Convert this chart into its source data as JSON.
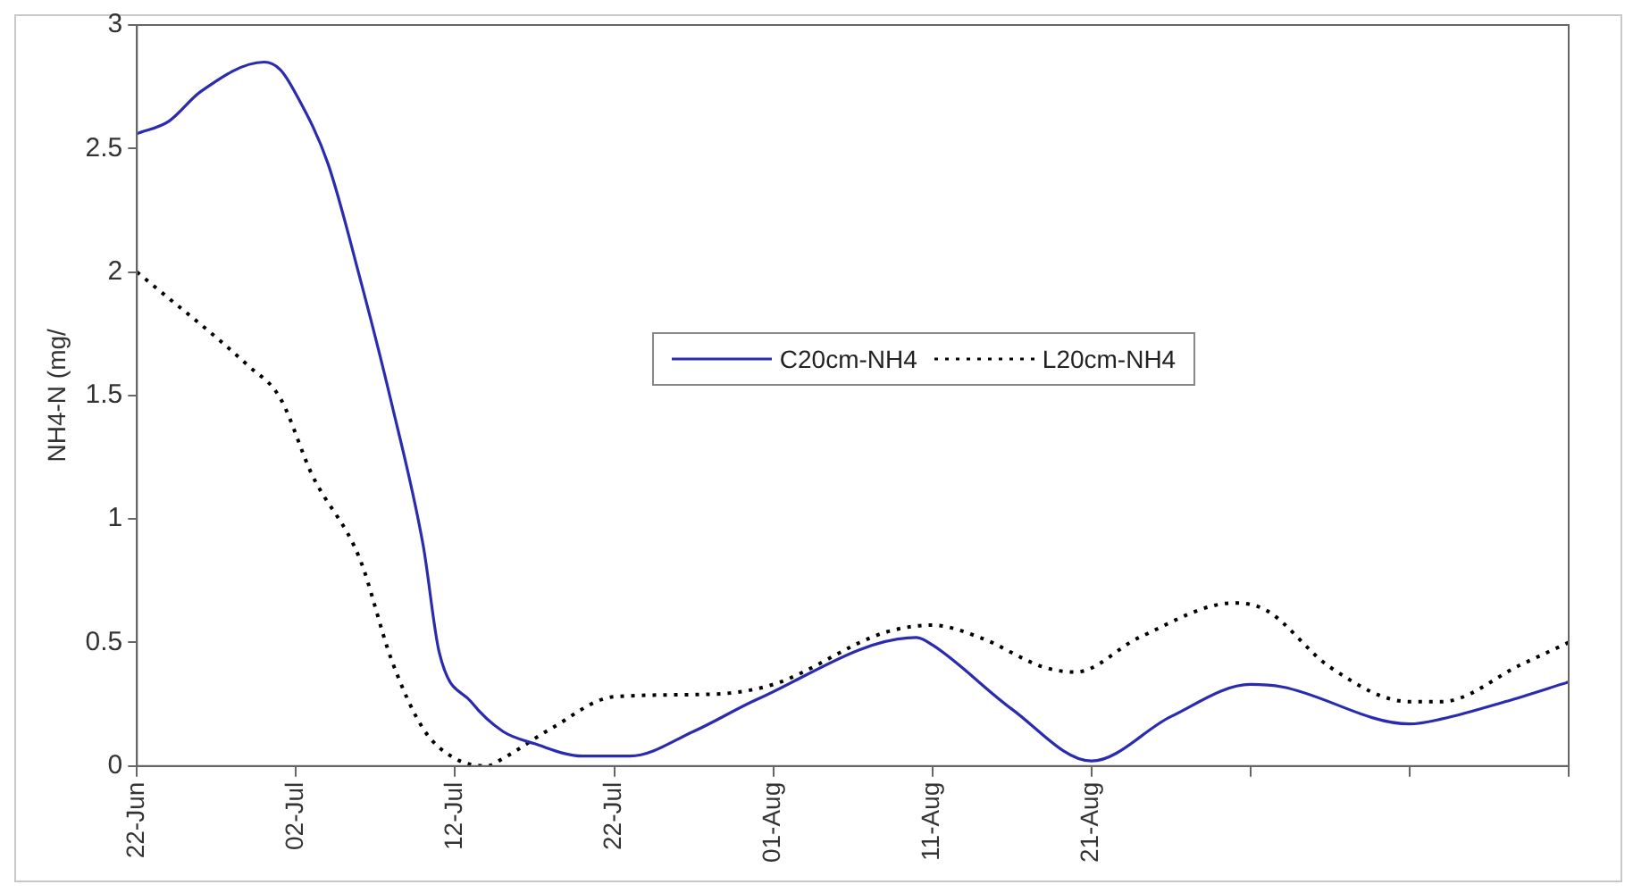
{
  "chart_data": {
    "type": "line",
    "xlabel": null,
    "ylabel": "NH4-N (mg/",
    "legend": "center",
    "grid": false,
    "marker": "none",
    "xlim": [
      "--06-22",
      "--09-20"
    ],
    "xticks": [
      {
        "value": "--06-22",
        "label": "22-Jun"
      },
      {
        "value": "--07-02",
        "label": "02-Jul"
      },
      {
        "value": "--07-12",
        "label": "12-Jul"
      },
      {
        "value": "--07-22",
        "label": "22-Jul"
      },
      {
        "value": "--08-01",
        "label": "01-Aug"
      },
      {
        "value": "--08-11",
        "label": "11-Aug"
      },
      {
        "value": "--08-21",
        "label": "21-Aug"
      },
      {
        "value": "--08-31",
        "label": null
      },
      {
        "value": "--09-10",
        "label": null
      },
      {
        "value": "--09-20",
        "label": null
      }
    ],
    "ylim": [
      0,
      3
    ],
    "yticks": [
      0,
      0.5,
      1,
      1.5,
      2,
      2.5,
      3
    ],
    "series": [
      {
        "name": "C20cm-NH4",
        "color": "#2b2bb0",
        "line_style": "solid",
        "x": [
          "--06-22",
          "--06-24",
          "--06-26",
          "--06-30",
          "--07-01",
          "--07-02",
          "--07-04",
          "--07-06",
          "--07-08",
          "--07-10",
          "--07-11",
          "--07-13",
          "--07-15",
          "--07-17",
          "--07-20",
          "--07-23",
          "--07-27",
          "--07-31",
          "--08-10",
          "--08-11",
          "--08-16",
          "--08-21",
          "--08-26",
          "--08-31",
          "--09-02",
          "--09-10",
          "--09-12",
          "--09-16",
          "--09-20"
        ],
        "values": [
          2.56,
          2.61,
          2.73,
          2.85,
          2.82,
          2.72,
          2.44,
          1.98,
          1.47,
          0.89,
          0.46,
          0.26,
          0.14,
          0.09,
          0.04,
          0.04,
          0.14,
          0.27,
          0.52,
          0.49,
          0.23,
          0.02,
          0.2,
          0.33,
          0.32,
          0.17,
          0.19,
          0.26,
          0.34
        ]
      },
      {
        "name": "L20cm-NH4",
        "color": "#000000",
        "line_style": "dotted",
        "x": [
          "--06-22",
          "--06-29",
          "--07-01",
          "--07-03",
          "--07-06",
          "--07-08",
          "--07-10",
          "--07-12",
          "--07-14",
          "--07-15",
          "--07-18",
          "--07-22",
          "--07-28",
          "--08-01",
          "--08-08",
          "--08-11",
          "--08-14",
          "--08-18",
          "--08-20",
          "--08-24",
          "--08-30",
          "--09-01",
          "--09-05",
          "--09-10",
          "--09-12",
          "--09-17",
          "--09-20"
        ],
        "values": [
          2.0,
          1.62,
          1.49,
          1.18,
          0.84,
          0.43,
          0.15,
          0.03,
          0,
          0.03,
          0.15,
          0.28,
          0.29,
          0.33,
          0.54,
          0.57,
          0.52,
          0.4,
          0.38,
          0.52,
          0.66,
          0.63,
          0.4,
          0.26,
          0.26,
          0.41,
          0.5
        ]
      }
    ]
  }
}
